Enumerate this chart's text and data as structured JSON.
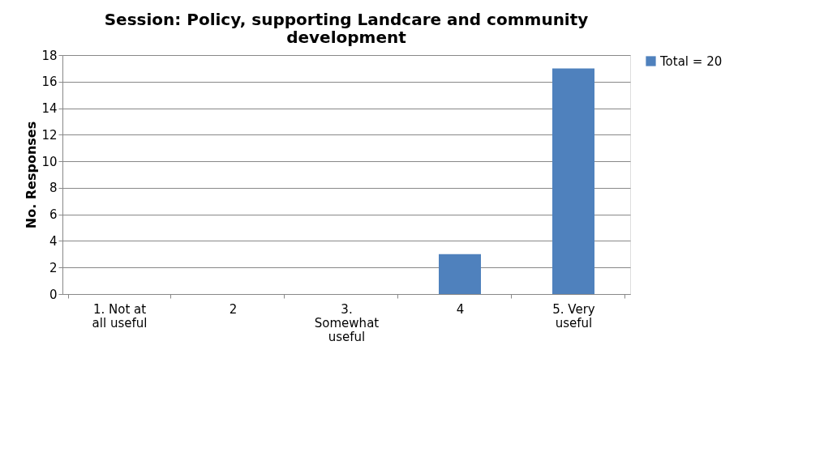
{
  "chart_data": {
    "type": "bar",
    "title": "Session: Policy, supporting Landcare and community development",
    "ylabel": "No. Responses",
    "categories": [
      "1. Not at all useful",
      "2",
      "3. Somewhat useful",
      "4",
      "5. Very useful"
    ],
    "series": [
      {
        "name": "Total = 20",
        "color": "#4f81bd",
        "values": [
          0,
          0,
          0,
          3,
          17
        ]
      }
    ],
    "ylim": [
      0,
      18
    ],
    "yticks": [
      0,
      2,
      4,
      6,
      8,
      10,
      12,
      14,
      16,
      18
    ],
    "grid": "y",
    "legend": "right"
  }
}
